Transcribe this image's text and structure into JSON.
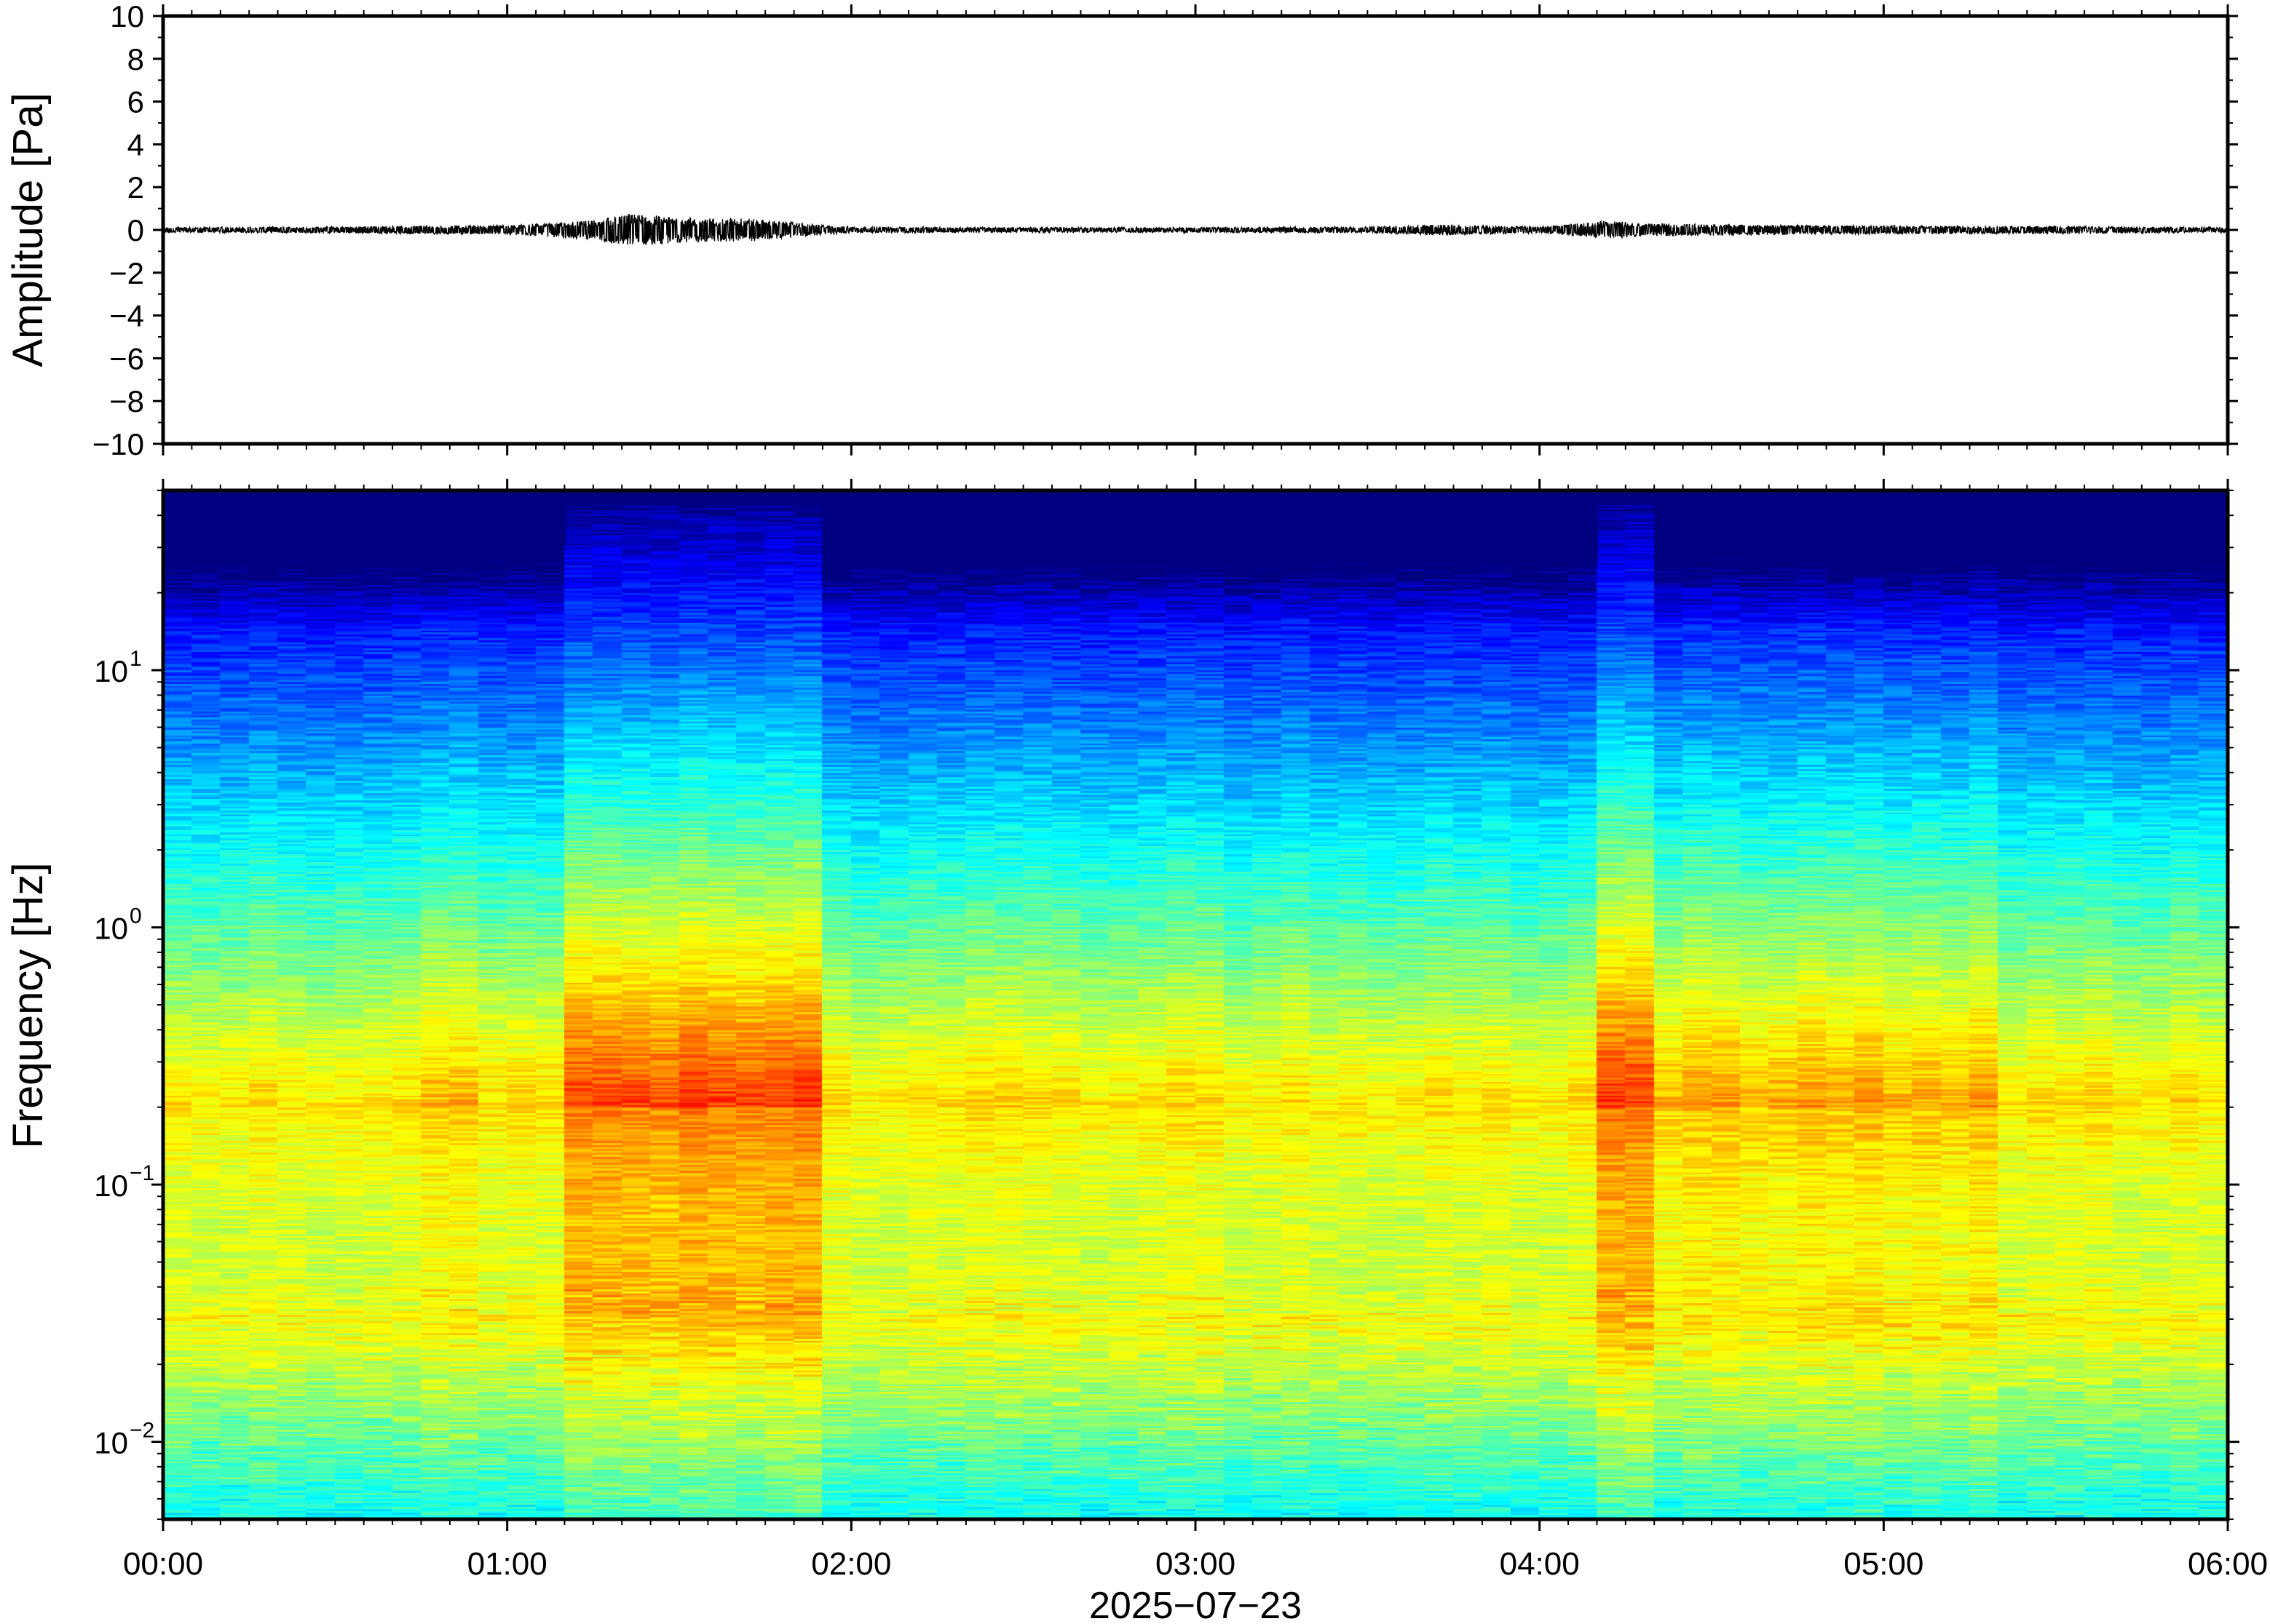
{
  "chart_data": [
    {
      "type": "line",
      "ylabel": "Amplitude [Pa]",
      "ylim": [
        -10,
        10
      ],
      "yticks": [
        10,
        8,
        6,
        4,
        2,
        0,
        -2,
        -4,
        -6,
        -8,
        -10
      ],
      "ytick_labels": [
        "10",
        "8",
        "6",
        "4",
        "2",
        "0",
        "−2",
        "−4",
        "−6",
        "−8",
        "−10"
      ],
      "xlim_hours": [
        0,
        6
      ],
      "series": [
        {
          "x_hours": [
            0.0,
            0.5,
            0.8,
            1.0,
            1.25,
            1.35,
            1.5,
            1.6,
            1.7,
            1.8,
            1.9,
            2.0,
            2.5,
            3.0,
            3.5,
            3.7,
            4.0,
            4.15,
            4.2,
            4.3,
            4.6,
            5.0,
            5.5,
            6.0
          ],
          "envelope_pa": [
            0.12,
            0.15,
            0.2,
            0.22,
            0.45,
            0.75,
            0.6,
            0.55,
            0.55,
            0.4,
            0.25,
            0.14,
            0.12,
            0.12,
            0.15,
            0.25,
            0.15,
            0.35,
            0.45,
            0.3,
            0.25,
            0.2,
            0.18,
            0.12
          ]
        }
      ],
      "grid": false
    },
    {
      "type": "heatmap",
      "ylabel": "Frequency [Hz]",
      "yscale": "log",
      "ylim_hz": [
        0.005,
        50
      ],
      "yticks_hz": [
        10,
        1,
        0.1,
        0.01
      ],
      "ytick_labels": [
        {
          "base": "10",
          "exp": "1"
        },
        {
          "base": "10",
          "exp": "0"
        },
        {
          "base": "10",
          "exp": "−1"
        },
        {
          "base": "10",
          "exp": "−2"
        }
      ],
      "xlabel": "2025−07−23",
      "xlim_hours": [
        0,
        6
      ],
      "xticks_hours": [
        0,
        1,
        2,
        3,
        4,
        5,
        6
      ],
      "xtick_labels": [
        "00:00",
        "01:00",
        "02:00",
        "03:00",
        "04:00",
        "05:00",
        "06:00"
      ],
      "colormap": "jet",
      "colors": [
        "#000080",
        "#0000ff",
        "#0080ff",
        "#00ffff",
        "#80ff80",
        "#ffff00",
        "#ff8000",
        "#ff0000"
      ],
      "high_energy_intervals_hours": [
        [
          1.2,
          1.9
        ],
        [
          4.15,
          4.3
        ]
      ]
    }
  ]
}
